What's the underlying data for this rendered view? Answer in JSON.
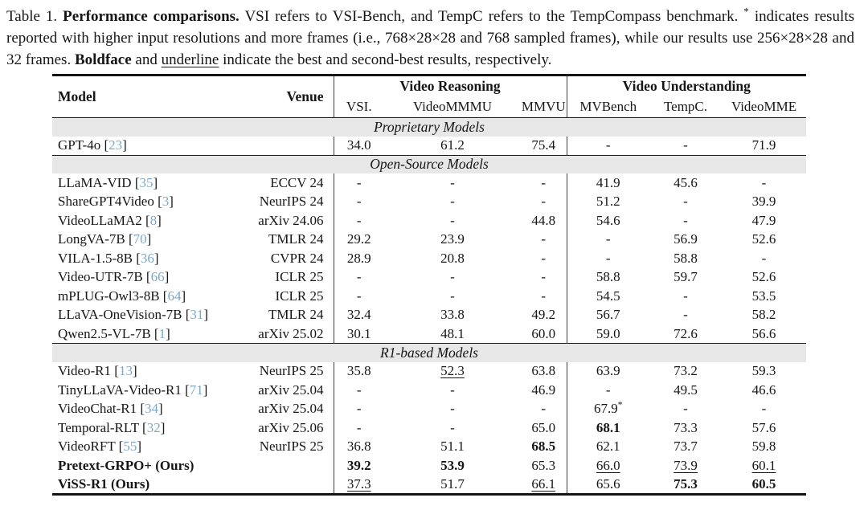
{
  "colors": {
    "citation_link": "#7ba8ca",
    "section_bar": "#e7e7e7",
    "rule": "#141414"
  },
  "caption": {
    "segments": [
      {
        "t": "Table 1. ",
        "s": ""
      },
      {
        "t": "Performance comparisons.",
        "s": "b"
      },
      {
        "t": " VSI refers to VSI-Bench, and TempC refers to the TempCompass benchmark. ",
        "s": ""
      },
      {
        "t": "*",
        "s": "sup"
      },
      {
        "t": " indicates results reported with higher input resolutions and more frames (i.e., 768×28×28 and 768 sampled frames), while our results use 256×28×28 and 32 frames. ",
        "s": ""
      },
      {
        "t": "Boldface",
        "s": "b"
      },
      {
        "t": " and ",
        "s": ""
      },
      {
        "t": "underline",
        "s": "u"
      },
      {
        "t": " indicate the best and second-best results, respectively.",
        "s": ""
      }
    ]
  },
  "table": {
    "header": {
      "model": "Model",
      "venue": "Venue",
      "groups": [
        {
          "label": "Video Reasoning",
          "cols": [
            "VSI.",
            "VideoMMMU",
            "MMVU"
          ]
        },
        {
          "label": "Video Understanding",
          "cols": [
            "MVBench",
            "TempC.",
            "VideoMME"
          ]
        }
      ]
    },
    "sections": [
      {
        "title": "Proprietary Models",
        "rows": [
          {
            "model": "GPT-4o",
            "cite": "23",
            "venue": "",
            "bold": false,
            "v": [
              [
                "34.0",
                ""
              ],
              [
                "61.2",
                ""
              ],
              [
                "75.4",
                ""
              ],
              [
                "-",
                ""
              ],
              [
                "-",
                ""
              ],
              [
                "71.9",
                ""
              ]
            ]
          }
        ]
      },
      {
        "title": "Open-Source Models",
        "rows": [
          {
            "model": "LLaMA-VID",
            "cite": "35",
            "venue": "ECCV 24",
            "bold": false,
            "v": [
              [
                "-",
                ""
              ],
              [
                "-",
                ""
              ],
              [
                "-",
                ""
              ],
              [
                "41.9",
                ""
              ],
              [
                "45.6",
                ""
              ],
              [
                "-",
                ""
              ]
            ]
          },
          {
            "model": "ShareGPT4Video",
            "cite": "3",
            "venue": "NeurIPS 24",
            "bold": false,
            "v": [
              [
                "-",
                ""
              ],
              [
                "-",
                ""
              ],
              [
                "-",
                ""
              ],
              [
                "51.2",
                ""
              ],
              [
                "-",
                ""
              ],
              [
                "39.9",
                ""
              ]
            ]
          },
          {
            "model": "VideoLLaMA2",
            "cite": "8",
            "venue": "arXiv 24.06",
            "bold": false,
            "v": [
              [
                "-",
                ""
              ],
              [
                "-",
                ""
              ],
              [
                "44.8",
                ""
              ],
              [
                "54.6",
                ""
              ],
              [
                "-",
                ""
              ],
              [
                "47.9",
                ""
              ]
            ]
          },
          {
            "model": "LongVA-7B",
            "cite": "70",
            "venue": "TMLR 24",
            "bold": false,
            "v": [
              [
                "29.2",
                ""
              ],
              [
                "23.9",
                ""
              ],
              [
                "-",
                ""
              ],
              [
                "-",
                ""
              ],
              [
                "56.9",
                ""
              ],
              [
                "52.6",
                ""
              ]
            ]
          },
          {
            "model": "VILA-1.5-8B",
            "cite": "36",
            "venue": "CVPR 24",
            "bold": false,
            "v": [
              [
                "28.9",
                ""
              ],
              [
                "20.8",
                ""
              ],
              [
                "-",
                ""
              ],
              [
                "-",
                ""
              ],
              [
                "58.8",
                ""
              ],
              [
                "-",
                ""
              ]
            ]
          },
          {
            "model": "Video-UTR-7B",
            "cite": "66",
            "venue": "ICLR 25",
            "bold": false,
            "v": [
              [
                "-",
                ""
              ],
              [
                "-",
                ""
              ],
              [
                "-",
                ""
              ],
              [
                "58.8",
                ""
              ],
              [
                "59.7",
                ""
              ],
              [
                "52.6",
                ""
              ]
            ]
          },
          {
            "model": "mPLUG-Owl3-8B",
            "cite": "64",
            "venue": "ICLR 25",
            "bold": false,
            "v": [
              [
                "-",
                ""
              ],
              [
                "-",
                ""
              ],
              [
                "-",
                ""
              ],
              [
                "54.5",
                ""
              ],
              [
                "-",
                ""
              ],
              [
                "53.5",
                ""
              ]
            ]
          },
          {
            "model": "LLaVA-OneVision-7B",
            "cite": "31",
            "venue": "TMLR 24",
            "bold": false,
            "v": [
              [
                "32.4",
                ""
              ],
              [
                "33.8",
                ""
              ],
              [
                "49.2",
                ""
              ],
              [
                "56.7",
                ""
              ],
              [
                "-",
                ""
              ],
              [
                "58.2",
                ""
              ]
            ]
          },
          {
            "model": "Qwen2.5-VL-7B",
            "cite": "1",
            "venue": "arXiv 25.02",
            "bold": false,
            "v": [
              [
                "30.1",
                ""
              ],
              [
                "48.1",
                ""
              ],
              [
                "60.0",
                ""
              ],
              [
                "59.0",
                ""
              ],
              [
                "72.6",
                ""
              ],
              [
                "56.6",
                ""
              ]
            ]
          }
        ]
      },
      {
        "title": "R1-based Models",
        "rows": [
          {
            "model": "Video-R1",
            "cite": "13",
            "venue": "NeurIPS 25",
            "bold": false,
            "v": [
              [
                "35.8",
                ""
              ],
              [
                "52.3",
                "u"
              ],
              [
                "63.8",
                ""
              ],
              [
                "63.9",
                ""
              ],
              [
                "73.2",
                ""
              ],
              [
                "59.3",
                ""
              ]
            ]
          },
          {
            "model": "TinyLLaVA-Video-R1",
            "cite": "71",
            "venue": "arXiv 25.04",
            "bold": false,
            "v": [
              [
                "-",
                ""
              ],
              [
                "-",
                ""
              ],
              [
                "46.9",
                ""
              ],
              [
                "-",
                ""
              ],
              [
                "49.5",
                ""
              ],
              [
                "46.6",
                ""
              ]
            ]
          },
          {
            "model": "VideoChat-R1",
            "cite": "34",
            "venue": "arXiv 25.04",
            "bold": false,
            "v": [
              [
                "-",
                ""
              ],
              [
                "-",
                ""
              ],
              [
                "-",
                ""
              ],
              [
                "67.9",
                "star"
              ],
              [
                "-",
                ""
              ],
              [
                "-",
                ""
              ]
            ]
          },
          {
            "model": "Temporal-RLT",
            "cite": "32",
            "venue": "arXiv 25.06",
            "bold": false,
            "v": [
              [
                "-",
                ""
              ],
              [
                "-",
                ""
              ],
              [
                "65.0",
                ""
              ],
              [
                "68.1",
                "b"
              ],
              [
                "73.3",
                ""
              ],
              [
                "57.6",
                ""
              ]
            ]
          },
          {
            "model": "VideoRFT",
            "cite": "55",
            "venue": "NeurIPS 25",
            "bold": false,
            "v": [
              [
                "36.8",
                ""
              ],
              [
                "51.1",
                ""
              ],
              [
                "68.5",
                "b"
              ],
              [
                "62.1",
                ""
              ],
              [
                "73.7",
                ""
              ],
              [
                "59.8",
                ""
              ]
            ]
          },
          {
            "model": "Pretext-GRPO+ (Ours)",
            "cite": "",
            "venue": "",
            "bold": true,
            "v": [
              [
                "39.2",
                "b"
              ],
              [
                "53.9",
                "b"
              ],
              [
                "65.3",
                ""
              ],
              [
                "66.0",
                "u"
              ],
              [
                "73.9",
                "u"
              ],
              [
                "60.1",
                "u"
              ]
            ]
          },
          {
            "model": "ViSS-R1 (Ours)",
            "cite": "",
            "venue": "",
            "bold": true,
            "v": [
              [
                "37.3",
                "u"
              ],
              [
                "51.7",
                ""
              ],
              [
                "66.1",
                "u"
              ],
              [
                "65.6",
                ""
              ],
              [
                "75.3",
                "b"
              ],
              [
                "60.5",
                "b"
              ]
            ]
          }
        ]
      }
    ]
  }
}
